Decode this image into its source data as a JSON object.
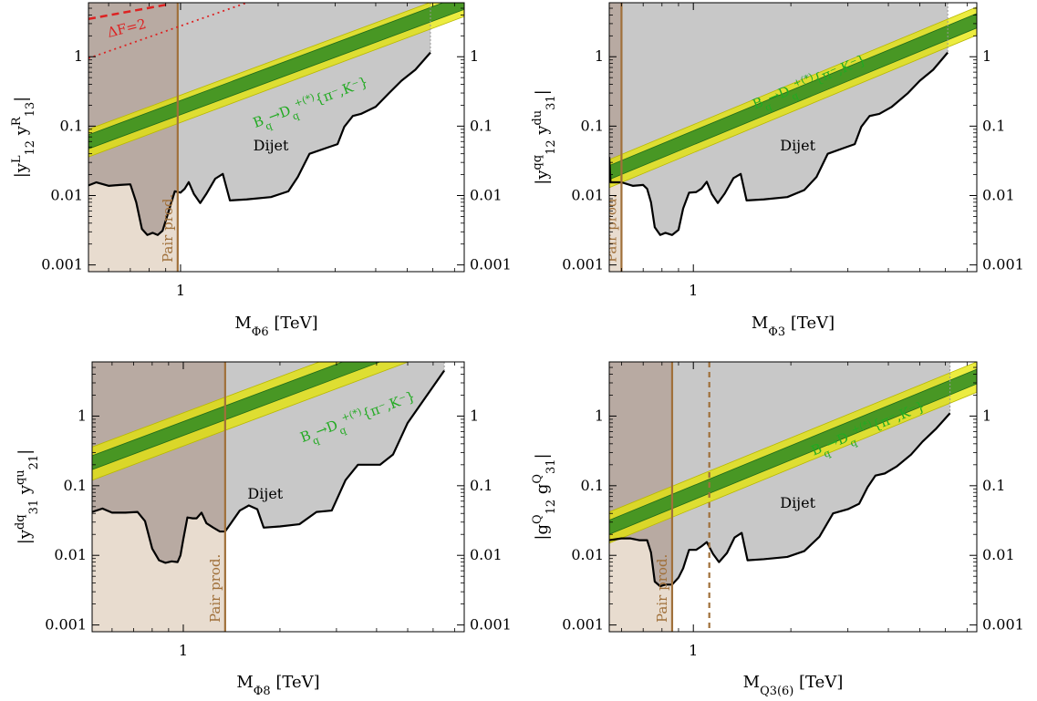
{
  "colors": {
    "frame": "#000000",
    "dijet_fill": "#c8c8c8",
    "dijet_line": "#000000",
    "pair_fill": "#e8dccf",
    "pair_dark_fill": "#b8aaa2",
    "pair_line": "#a0703a",
    "band_outer": "#e6e600",
    "band_inner": "#2e8b22",
    "band_text": "#22aa22",
    "delta_f": "#dd2222"
  },
  "chart_data": [
    {
      "type": "area",
      "xlabel": "M_{Φ6} [TeV]",
      "ylabel": "|y^L_12 y^R_13|",
      "xscale": "log",
      "yscale": "log",
      "xlim": [
        0.52,
        7.5
      ],
      "ylim": [
        0.0008,
        6
      ],
      "xticks": [
        {
          "v": 1,
          "label": "1"
        }
      ],
      "yticks": [
        {
          "v": 0.001,
          "label": "0.001"
        },
        {
          "v": 0.01,
          "label": "0.01"
        },
        {
          "v": 0.1,
          "label": "0.1"
        },
        {
          "v": 1,
          "label": "1"
        }
      ],
      "dijet_label": "Dijet",
      "dijet_label_pos": [
        1.9,
        0.045
      ],
      "dijet_limit": [
        [
          0.52,
          0.014
        ],
        [
          0.55,
          0.0155
        ],
        [
          0.6,
          0.0138
        ],
        [
          0.65,
          0.0142
        ],
        [
          0.7,
          0.0145
        ],
        [
          0.73,
          0.008
        ],
        [
          0.76,
          0.0033
        ],
        [
          0.79,
          0.0027
        ],
        [
          0.82,
          0.0029
        ],
        [
          0.85,
          0.0027
        ],
        [
          0.88,
          0.0031
        ],
        [
          0.92,
          0.006
        ],
        [
          0.96,
          0.0115
        ],
        [
          1.0,
          0.011
        ],
        [
          1.03,
          0.0125
        ],
        [
          1.06,
          0.0156
        ],
        [
          1.1,
          0.0105
        ],
        [
          1.15,
          0.0078
        ],
        [
          1.2,
          0.0105
        ],
        [
          1.28,
          0.0175
        ],
        [
          1.35,
          0.0205
        ],
        [
          1.42,
          0.0085
        ],
        [
          1.6,
          0.0088
        ],
        [
          1.9,
          0.0095
        ],
        [
          2.15,
          0.0115
        ],
        [
          2.3,
          0.0185
        ],
        [
          2.5,
          0.04
        ],
        [
          2.8,
          0.048
        ],
        [
          3.05,
          0.055
        ],
        [
          3.2,
          0.098
        ],
        [
          3.4,
          0.14
        ],
        [
          3.6,
          0.15
        ],
        [
          4.0,
          0.19
        ],
        [
          4.4,
          0.3
        ],
        [
          4.8,
          0.45
        ],
        [
          5.3,
          0.65
        ],
        [
          5.9,
          1.15
        ]
      ],
      "pair_production": {
        "mass": 0.98,
        "label": "Pair prod.",
        "dashed_mass": null
      },
      "band": {
        "label": "B_q→D_q^{+(*)}{π⁻,K⁻}",
        "x1": 0.52,
        "inner1": [
          0.047,
          0.075
        ],
        "outer1": [
          0.036,
          0.09
        ],
        "x2": 7.5,
        "inner2": [
          4.8,
          7.8
        ],
        "outer2": [
          3.8,
          9.2
        ],
        "label_pos": [
          1.7,
          0.095
        ]
      },
      "delta_f": {
        "label": "ΔF=2",
        "dashed": [
          [
            0.52,
            3.5
          ],
          [
            0.9,
            5.6
          ]
        ],
        "dotted": [
          [
            0.52,
            0.95
          ],
          [
            1.6,
            6.0
          ]
        ],
        "label_pos": [
          0.6,
          1.9
        ]
      }
    },
    {
      "type": "area",
      "xlabel": "M_{Φ3} [TeV]",
      "ylabel": "|y^{qq}_12 y^{du}_31|",
      "xscale": "log",
      "yscale": "log",
      "xlim": [
        0.55,
        7.5
      ],
      "ylim": [
        0.0008,
        6
      ],
      "xticks": [
        {
          "v": 1,
          "label": "1"
        }
      ],
      "yticks": [
        {
          "v": 0.001,
          "label": "0.001"
        },
        {
          "v": 0.01,
          "label": "0.01"
        },
        {
          "v": 0.1,
          "label": "0.1"
        },
        {
          "v": 1,
          "label": "1"
        }
      ],
      "dijet_label": "Dijet",
      "dijet_label_pos": [
        2.1,
        0.045
      ],
      "dijet_limit": [
        [
          0.55,
          0.036
        ],
        [
          0.555,
          0.0155
        ],
        [
          0.6,
          0.0155
        ],
        [
          0.65,
          0.0138
        ],
        [
          0.7,
          0.0142
        ],
        [
          0.72,
          0.0125
        ],
        [
          0.74,
          0.008
        ],
        [
          0.76,
          0.0035
        ],
        [
          0.79,
          0.0027
        ],
        [
          0.82,
          0.0029
        ],
        [
          0.86,
          0.0027
        ],
        [
          0.9,
          0.0032
        ],
        [
          0.93,
          0.0065
        ],
        [
          0.97,
          0.011
        ],
        [
          1.02,
          0.0112
        ],
        [
          1.06,
          0.0126
        ],
        [
          1.1,
          0.0158
        ],
        [
          1.14,
          0.0105
        ],
        [
          1.19,
          0.0078
        ],
        [
          1.25,
          0.0107
        ],
        [
          1.33,
          0.0178
        ],
        [
          1.4,
          0.0205
        ],
        [
          1.46,
          0.0085
        ],
        [
          1.65,
          0.0088
        ],
        [
          1.95,
          0.0095
        ],
        [
          2.2,
          0.012
        ],
        [
          2.4,
          0.0185
        ],
        [
          2.6,
          0.04
        ],
        [
          2.9,
          0.048
        ],
        [
          3.15,
          0.055
        ],
        [
          3.3,
          0.098
        ],
        [
          3.5,
          0.14
        ],
        [
          3.75,
          0.15
        ],
        [
          4.1,
          0.19
        ],
        [
          4.6,
          0.3
        ],
        [
          5.0,
          0.45
        ],
        [
          5.5,
          0.65
        ],
        [
          6.1,
          1.15
        ]
      ],
      "pair_production": {
        "mass": 0.6,
        "label": "Pair prod.",
        "dashed_mass": null
      },
      "band": {
        "label": "B_q→D_q^{+(*)}{π⁻,K⁻}",
        "x1": 0.55,
        "inner1": [
          0.017,
          0.027
        ],
        "outer1": [
          0.013,
          0.033
        ],
        "x2": 7.5,
        "inner2": [
          2.6,
          4.2
        ],
        "outer2": [
          2.05,
          5.2
        ],
        "label_pos": [
          1.55,
          0.175
        ]
      },
      "delta_f": null
    },
    {
      "type": "area",
      "xlabel": "M_{Φ8} [TeV]",
      "ylabel": "|y^{dq}_31 y^{qu}_21|",
      "xscale": "log",
      "yscale": "log",
      "xlim": [
        0.52,
        7.5
      ],
      "ylim": [
        0.0008,
        6
      ],
      "xticks": [
        {
          "v": 1,
          "label": "1"
        }
      ],
      "yticks": [
        {
          "v": 0.001,
          "label": "0.001"
        },
        {
          "v": 0.01,
          "label": "0.01"
        },
        {
          "v": 0.1,
          "label": "0.1"
        },
        {
          "v": 1,
          "label": "1"
        }
      ],
      "dijet_label": "Dijet",
      "dijet_label_pos": [
        1.8,
        0.065
      ],
      "dijet_limit": [
        [
          0.52,
          0.042
        ],
        [
          0.56,
          0.047
        ],
        [
          0.6,
          0.041
        ],
        [
          0.66,
          0.041
        ],
        [
          0.72,
          0.042
        ],
        [
          0.76,
          0.031
        ],
        [
          0.8,
          0.0125
        ],
        [
          0.84,
          0.0085
        ],
        [
          0.88,
          0.0078
        ],
        [
          0.92,
          0.0082
        ],
        [
          0.96,
          0.008
        ],
        [
          0.98,
          0.01
        ],
        [
          1.0,
          0.017
        ],
        [
          1.03,
          0.035
        ],
        [
          1.07,
          0.034
        ],
        [
          1.1,
          0.034
        ],
        [
          1.14,
          0.041
        ],
        [
          1.18,
          0.029
        ],
        [
          1.24,
          0.025
        ],
        [
          1.3,
          0.022
        ],
        [
          1.35,
          0.022
        ],
        [
          1.5,
          0.044
        ],
        [
          1.6,
          0.052
        ],
        [
          1.7,
          0.046
        ],
        [
          1.78,
          0.025
        ],
        [
          2.0,
          0.026
        ],
        [
          2.3,
          0.028
        ],
        [
          2.6,
          0.042
        ],
        [
          2.9,
          0.044
        ],
        [
          3.2,
          0.12
        ],
        [
          3.5,
          0.2
        ],
        [
          4.1,
          0.2
        ],
        [
          4.5,
          0.28
        ],
        [
          5.0,
          0.8
        ],
        [
          6.5,
          4.5
        ]
      ],
      "pair_production": {
        "mass": 1.35,
        "label": "Pair prod.",
        "dashed_mass": null
      },
      "band": {
        "label": "B_q→D_q^{+(*)}{π⁻,K⁻}",
        "x1": 0.52,
        "inner1": [
          0.17,
          0.27
        ],
        "outer1": [
          0.12,
          0.36
        ],
        "x2": 7.5,
        "inner2": [
          17,
          27
        ],
        "outer2": [
          12,
          36
        ],
        "label_pos": [
          2.35,
          0.42
        ]
      },
      "delta_f": null
    },
    {
      "type": "area",
      "xlabel": "M_{Q3(6)} [TeV]",
      "ylabel": "|g^Q_12 g^Q_31|",
      "xscale": "log",
      "yscale": "log",
      "xlim": [
        0.55,
        7.5
      ],
      "ylim": [
        0.0008,
        6
      ],
      "xticks": [
        {
          "v": 1,
          "label": "1"
        }
      ],
      "yticks": [
        {
          "v": 0.001,
          "label": "0.001"
        },
        {
          "v": 0.01,
          "label": "0.01"
        },
        {
          "v": 0.1,
          "label": "0.1"
        },
        {
          "v": 1,
          "label": "1"
        }
      ],
      "dijet_label": "Dijet",
      "dijet_label_pos": [
        2.1,
        0.048
      ],
      "dijet_limit": [
        [
          0.55,
          0.0165
        ],
        [
          0.6,
          0.0175
        ],
        [
          0.64,
          0.0175
        ],
        [
          0.68,
          0.0165
        ],
        [
          0.72,
          0.0165
        ],
        [
          0.74,
          0.011
        ],
        [
          0.76,
          0.0042
        ],
        [
          0.79,
          0.0036
        ],
        [
          0.82,
          0.0038
        ],
        [
          0.86,
          0.0038
        ],
        [
          0.9,
          0.0048
        ],
        [
          0.93,
          0.0065
        ],
        [
          0.97,
          0.012
        ],
        [
          1.02,
          0.012
        ],
        [
          1.06,
          0.0135
        ],
        [
          1.1,
          0.0155
        ],
        [
          1.15,
          0.0105
        ],
        [
          1.2,
          0.008
        ],
        [
          1.27,
          0.0108
        ],
        [
          1.34,
          0.018
        ],
        [
          1.41,
          0.021
        ],
        [
          1.47,
          0.0085
        ],
        [
          1.65,
          0.0088
        ],
        [
          1.95,
          0.0095
        ],
        [
          2.2,
          0.0115
        ],
        [
          2.45,
          0.0185
        ],
        [
          2.7,
          0.04
        ],
        [
          3.0,
          0.046
        ],
        [
          3.25,
          0.055
        ],
        [
          3.45,
          0.095
        ],
        [
          3.65,
          0.14
        ],
        [
          3.9,
          0.15
        ],
        [
          4.25,
          0.19
        ],
        [
          4.7,
          0.28
        ],
        [
          5.1,
          0.43
        ],
        [
          5.6,
          0.65
        ],
        [
          6.2,
          1.1
        ]
      ],
      "pair_production": {
        "mass": 0.86,
        "label": "Pair prod.",
        "dashed_mass": 1.12
      },
      "band": {
        "label": "B_q→D_q^{+(*)}{π⁻,K⁻}",
        "x1": 0.55,
        "inner1": [
          0.02,
          0.032
        ],
        "outer1": [
          0.015,
          0.042
        ],
        "x2": 7.5,
        "inner2": [
          2.9,
          4.7
        ],
        "outer2": [
          2.2,
          6.0
        ],
        "label_pos": [
          2.35,
          0.27
        ]
      },
      "delta_f": null
    }
  ]
}
